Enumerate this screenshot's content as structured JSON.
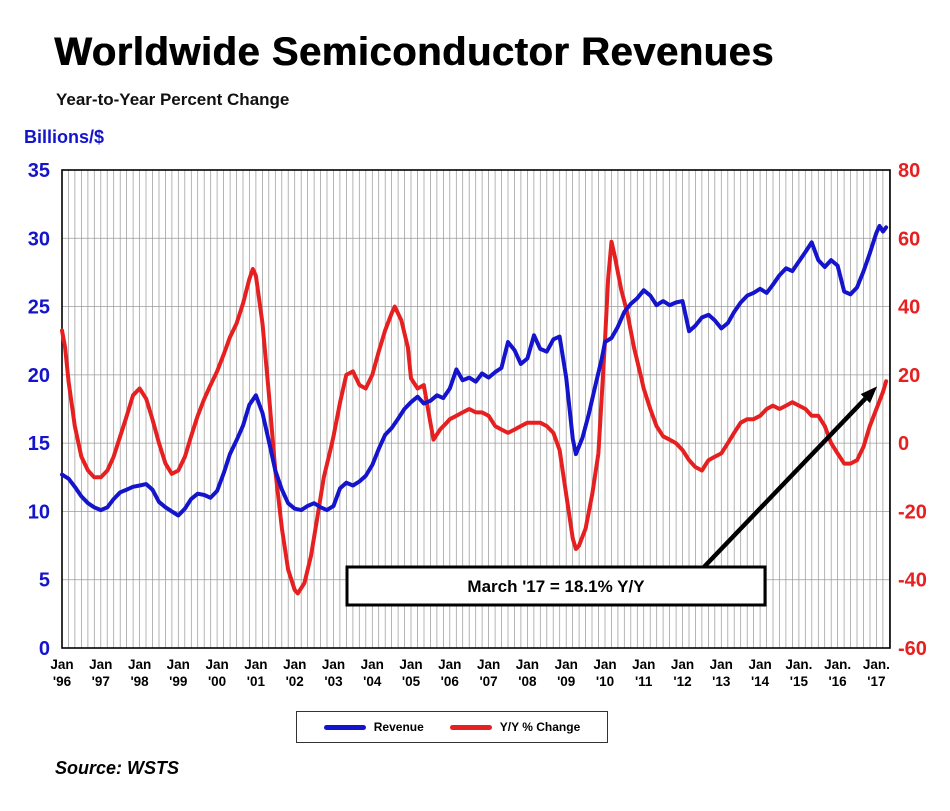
{
  "header": {
    "title": "Worldwide Semiconductor Revenues",
    "subtitle": "Year-to-Year Percent Change",
    "left_axis_title": "Billions/$"
  },
  "legend": {
    "revenue_label": "Revenue",
    "yoy_label": "Y/Y % Change"
  },
  "source": {
    "text": "Source: WSTS"
  },
  "chart_data": {
    "type": "line",
    "title": "Worldwide Semiconductor Revenues",
    "subtitle": "Year-to-Year Percent Change",
    "grid": {
      "vertical_interval_months": 2,
      "horizontal_interval_left_axis": 5
    },
    "left_axis": {
      "label": "Billions/$",
      "min": 0,
      "max": 35,
      "ticks": [
        35,
        30,
        25,
        20,
        15,
        10,
        5,
        0
      ],
      "color": "#1414CC"
    },
    "right_axis": {
      "label": "Y/Y % Change",
      "min": -60,
      "max": 80,
      "ticks": [
        80,
        60,
        40,
        20,
        0,
        -20,
        -40,
        -60
      ],
      "color": "#E62020"
    },
    "x_axis": {
      "min": 1996,
      "max": 2017.35,
      "tick_years": [
        1996,
        1997,
        1998,
        1999,
        2000,
        2001,
        2002,
        2003,
        2004,
        2005,
        2006,
        2007,
        2008,
        2009,
        2010,
        2011,
        2012,
        2013,
        2014,
        2015,
        2016,
        2017
      ],
      "tick_labels": [
        [
          "Jan",
          "'96"
        ],
        [
          "Jan",
          "'97"
        ],
        [
          "Jan",
          "'98"
        ],
        [
          "Jan",
          "'99"
        ],
        [
          "Jan",
          "'00"
        ],
        [
          "Jan",
          "'01"
        ],
        [
          "Jan",
          "'02"
        ],
        [
          "Jan",
          "'03"
        ],
        [
          "Jan",
          "'04"
        ],
        [
          "Jan",
          "'05"
        ],
        [
          "Jan",
          "'06"
        ],
        [
          "Jan",
          "'07"
        ],
        [
          "Jan",
          "'08"
        ],
        [
          "Jan",
          "'09"
        ],
        [
          "Jan",
          "'10"
        ],
        [
          "Jan",
          "'11"
        ],
        [
          "Jan",
          "'12"
        ],
        [
          "Jan",
          "'13"
        ],
        [
          "Jan",
          "'14"
        ],
        [
          "Jan.",
          "'15"
        ],
        [
          "Jan.",
          "'16"
        ],
        [
          "Jan.",
          "'17"
        ]
      ]
    },
    "annotation": {
      "text": "March '17 = 18.1% Y/Y",
      "arrow_to_x": 2017.25,
      "arrow_to_y": 18.1
    },
    "series": [
      {
        "name": "Revenue",
        "axis": "left",
        "color": "#1414CC",
        "points": [
          [
            1996.0,
            12.7
          ],
          [
            1996.17,
            12.4
          ],
          [
            1996.33,
            11.8
          ],
          [
            1996.5,
            11.1
          ],
          [
            1996.67,
            10.6
          ],
          [
            1996.83,
            10.3
          ],
          [
            1997.0,
            10.1
          ],
          [
            1997.17,
            10.3
          ],
          [
            1997.33,
            10.9
          ],
          [
            1997.5,
            11.4
          ],
          [
            1997.67,
            11.6
          ],
          [
            1997.83,
            11.8
          ],
          [
            1998.0,
            11.9
          ],
          [
            1998.17,
            12.0
          ],
          [
            1998.33,
            11.6
          ],
          [
            1998.5,
            10.7
          ],
          [
            1998.67,
            10.3
          ],
          [
            1998.83,
            10.0
          ],
          [
            1999.0,
            9.7
          ],
          [
            1999.17,
            10.2
          ],
          [
            1999.33,
            10.9
          ],
          [
            1999.5,
            11.3
          ],
          [
            1999.67,
            11.2
          ],
          [
            1999.83,
            11.0
          ],
          [
            2000.0,
            11.5
          ],
          [
            2000.17,
            12.8
          ],
          [
            2000.33,
            14.2
          ],
          [
            2000.5,
            15.2
          ],
          [
            2000.67,
            16.3
          ],
          [
            2000.83,
            17.8
          ],
          [
            2001.0,
            18.5
          ],
          [
            2001.17,
            17.2
          ],
          [
            2001.33,
            15.2
          ],
          [
            2001.5,
            13.0
          ],
          [
            2001.67,
            11.6
          ],
          [
            2001.83,
            10.6
          ],
          [
            2002.0,
            10.2
          ],
          [
            2002.17,
            10.1
          ],
          [
            2002.33,
            10.4
          ],
          [
            2002.5,
            10.6
          ],
          [
            2002.67,
            10.3
          ],
          [
            2002.83,
            10.1
          ],
          [
            2003.0,
            10.4
          ],
          [
            2003.17,
            11.7
          ],
          [
            2003.33,
            12.1
          ],
          [
            2003.5,
            11.9
          ],
          [
            2003.67,
            12.2
          ],
          [
            2003.83,
            12.6
          ],
          [
            2004.0,
            13.4
          ],
          [
            2004.17,
            14.6
          ],
          [
            2004.33,
            15.6
          ],
          [
            2004.5,
            16.1
          ],
          [
            2004.67,
            16.8
          ],
          [
            2004.83,
            17.5
          ],
          [
            2005.0,
            18.0
          ],
          [
            2005.17,
            18.4
          ],
          [
            2005.33,
            17.9
          ],
          [
            2005.5,
            18.1
          ],
          [
            2005.67,
            18.5
          ],
          [
            2005.83,
            18.3
          ],
          [
            2006.0,
            19.0
          ],
          [
            2006.17,
            20.4
          ],
          [
            2006.33,
            19.6
          ],
          [
            2006.5,
            19.8
          ],
          [
            2006.67,
            19.5
          ],
          [
            2006.83,
            20.1
          ],
          [
            2007.0,
            19.8
          ],
          [
            2007.17,
            20.2
          ],
          [
            2007.33,
            20.5
          ],
          [
            2007.5,
            22.4
          ],
          [
            2007.67,
            21.8
          ],
          [
            2007.83,
            20.8
          ],
          [
            2008.0,
            21.2
          ],
          [
            2008.17,
            22.9
          ],
          [
            2008.33,
            21.9
          ],
          [
            2008.5,
            21.7
          ],
          [
            2008.67,
            22.6
          ],
          [
            2008.83,
            22.8
          ],
          [
            2009.0,
            19.8
          ],
          [
            2009.17,
            15.3
          ],
          [
            2009.25,
            14.2
          ],
          [
            2009.42,
            15.4
          ],
          [
            2009.58,
            17.1
          ],
          [
            2009.75,
            19.2
          ],
          [
            2009.92,
            21.2
          ],
          [
            2010.0,
            22.4
          ],
          [
            2010.17,
            22.7
          ],
          [
            2010.33,
            23.5
          ],
          [
            2010.5,
            24.6
          ],
          [
            2010.67,
            25.2
          ],
          [
            2010.83,
            25.6
          ],
          [
            2011.0,
            26.2
          ],
          [
            2011.17,
            25.8
          ],
          [
            2011.33,
            25.1
          ],
          [
            2011.5,
            25.4
          ],
          [
            2011.67,
            25.1
          ],
          [
            2011.83,
            25.3
          ],
          [
            2012.0,
            25.4
          ],
          [
            2012.17,
            23.2
          ],
          [
            2012.33,
            23.6
          ],
          [
            2012.5,
            24.2
          ],
          [
            2012.67,
            24.4
          ],
          [
            2012.83,
            24.0
          ],
          [
            2013.0,
            23.4
          ],
          [
            2013.17,
            23.8
          ],
          [
            2013.33,
            24.6
          ],
          [
            2013.5,
            25.3
          ],
          [
            2013.67,
            25.8
          ],
          [
            2013.83,
            26.0
          ],
          [
            2014.0,
            26.3
          ],
          [
            2014.17,
            26.0
          ],
          [
            2014.33,
            26.6
          ],
          [
            2014.5,
            27.3
          ],
          [
            2014.67,
            27.8
          ],
          [
            2014.83,
            27.6
          ],
          [
            2015.0,
            28.3
          ],
          [
            2015.17,
            29.0
          ],
          [
            2015.33,
            29.7
          ],
          [
            2015.5,
            28.4
          ],
          [
            2015.67,
            27.9
          ],
          [
            2015.83,
            28.4
          ],
          [
            2016.0,
            28.0
          ],
          [
            2016.17,
            26.1
          ],
          [
            2016.33,
            25.9
          ],
          [
            2016.5,
            26.4
          ],
          [
            2016.67,
            27.6
          ],
          [
            2016.83,
            28.9
          ],
          [
            2017.0,
            30.4
          ],
          [
            2017.08,
            30.9
          ],
          [
            2017.17,
            30.5
          ],
          [
            2017.25,
            30.8
          ]
        ]
      },
      {
        "name": "Y/Y % Change",
        "axis": "right",
        "color": "#E62020",
        "points": [
          [
            1996.0,
            33
          ],
          [
            1996.08,
            28
          ],
          [
            1996.17,
            18
          ],
          [
            1996.33,
            5
          ],
          [
            1996.5,
            -4
          ],
          [
            1996.67,
            -8
          ],
          [
            1996.83,
            -10
          ],
          [
            1997.0,
            -10
          ],
          [
            1997.17,
            -8
          ],
          [
            1997.33,
            -4
          ],
          [
            1997.5,
            2
          ],
          [
            1997.67,
            8
          ],
          [
            1997.83,
            14
          ],
          [
            1998.0,
            16
          ],
          [
            1998.17,
            13
          ],
          [
            1998.33,
            7
          ],
          [
            1998.5,
            0
          ],
          [
            1998.67,
            -6
          ],
          [
            1998.83,
            -9
          ],
          [
            1999.0,
            -8
          ],
          [
            1999.17,
            -4
          ],
          [
            1999.33,
            2
          ],
          [
            1999.5,
            8
          ],
          [
            1999.67,
            13
          ],
          [
            1999.83,
            17
          ],
          [
            2000.0,
            21
          ],
          [
            2000.17,
            26
          ],
          [
            2000.33,
            31
          ],
          [
            2000.5,
            35
          ],
          [
            2000.67,
            41
          ],
          [
            2000.83,
            48
          ],
          [
            2000.92,
            51
          ],
          [
            2001.0,
            49
          ],
          [
            2001.17,
            35
          ],
          [
            2001.33,
            15
          ],
          [
            2001.5,
            -8
          ],
          [
            2001.67,
            -25
          ],
          [
            2001.83,
            -37
          ],
          [
            2002.0,
            -43
          ],
          [
            2002.08,
            -44
          ],
          [
            2002.25,
            -41
          ],
          [
            2002.42,
            -33
          ],
          [
            2002.58,
            -22
          ],
          [
            2002.75,
            -10
          ],
          [
            2002.92,
            -2
          ],
          [
            2003.0,
            2
          ],
          [
            2003.17,
            12
          ],
          [
            2003.33,
            20
          ],
          [
            2003.5,
            21
          ],
          [
            2003.67,
            17
          ],
          [
            2003.83,
            16
          ],
          [
            2004.0,
            20
          ],
          [
            2004.17,
            27
          ],
          [
            2004.33,
            33
          ],
          [
            2004.5,
            38
          ],
          [
            2004.58,
            40
          ],
          [
            2004.75,
            36
          ],
          [
            2004.92,
            28
          ],
          [
            2005.0,
            19
          ],
          [
            2005.17,
            16
          ],
          [
            2005.33,
            17
          ],
          [
            2005.5,
            6
          ],
          [
            2005.58,
            1
          ],
          [
            2005.75,
            4
          ],
          [
            2005.92,
            6
          ],
          [
            2006.0,
            7
          ],
          [
            2006.17,
            8
          ],
          [
            2006.33,
            9
          ],
          [
            2006.5,
            10
          ],
          [
            2006.67,
            9
          ],
          [
            2006.83,
            9
          ],
          [
            2007.0,
            8
          ],
          [
            2007.17,
            5
          ],
          [
            2007.33,
            4
          ],
          [
            2007.5,
            3
          ],
          [
            2007.67,
            4
          ],
          [
            2007.83,
            5
          ],
          [
            2008.0,
            6
          ],
          [
            2008.17,
            6
          ],
          [
            2008.33,
            6
          ],
          [
            2008.5,
            5
          ],
          [
            2008.67,
            3
          ],
          [
            2008.83,
            -2
          ],
          [
            2009.0,
            -15
          ],
          [
            2009.17,
            -28
          ],
          [
            2009.25,
            -31
          ],
          [
            2009.33,
            -30
          ],
          [
            2009.5,
            -25
          ],
          [
            2009.67,
            -15
          ],
          [
            2009.83,
            -3
          ],
          [
            2010.0,
            30
          ],
          [
            2010.08,
            48
          ],
          [
            2010.17,
            59
          ],
          [
            2010.25,
            55
          ],
          [
            2010.42,
            45
          ],
          [
            2010.58,
            38
          ],
          [
            2010.75,
            28
          ],
          [
            2010.92,
            20
          ],
          [
            2011.0,
            16
          ],
          [
            2011.17,
            10
          ],
          [
            2011.33,
            5
          ],
          [
            2011.5,
            2
          ],
          [
            2011.67,
            1
          ],
          [
            2011.83,
            0
          ],
          [
            2012.0,
            -2
          ],
          [
            2012.17,
            -5
          ],
          [
            2012.33,
            -7
          ],
          [
            2012.5,
            -8
          ],
          [
            2012.67,
            -5
          ],
          [
            2012.83,
            -4
          ],
          [
            2013.0,
            -3
          ],
          [
            2013.17,
            0
          ],
          [
            2013.33,
            3
          ],
          [
            2013.5,
            6
          ],
          [
            2013.67,
            7
          ],
          [
            2013.83,
            7
          ],
          [
            2014.0,
            8
          ],
          [
            2014.17,
            10
          ],
          [
            2014.33,
            11
          ],
          [
            2014.5,
            10
          ],
          [
            2014.67,
            11
          ],
          [
            2014.83,
            12
          ],
          [
            2015.0,
            11
          ],
          [
            2015.17,
            10
          ],
          [
            2015.33,
            8
          ],
          [
            2015.5,
            8
          ],
          [
            2015.67,
            5
          ],
          [
            2015.83,
            0
          ],
          [
            2016.0,
            -3
          ],
          [
            2016.17,
            -6
          ],
          [
            2016.33,
            -6
          ],
          [
            2016.5,
            -5
          ],
          [
            2016.67,
            -1
          ],
          [
            2016.83,
            5
          ],
          [
            2017.0,
            10
          ],
          [
            2017.17,
            15
          ],
          [
            2017.25,
            18.1
          ]
        ]
      }
    ]
  }
}
